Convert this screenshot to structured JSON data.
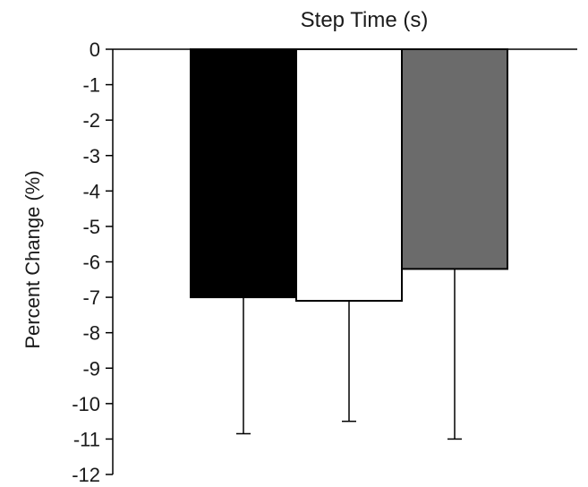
{
  "chart_data": {
    "type": "bar",
    "title": "Step Time (s)",
    "xlabel": "",
    "ylabel": "Percent Change (%)",
    "ylim": [
      -12,
      0
    ],
    "yticks": [
      0,
      -1,
      -2,
      -3,
      -4,
      -5,
      -6,
      -7,
      -8,
      -9,
      -10,
      -11,
      -12
    ],
    "grid": false,
    "categories": [
      "",
      "",
      ""
    ],
    "values": [
      -7.0,
      -7.1,
      -6.2
    ],
    "error_bars": [
      3.85,
      3.4,
      4.8
    ],
    "colors": [
      "#000000",
      "#ffffff",
      "#6b6b6b"
    ],
    "edge_color": "#000000"
  }
}
